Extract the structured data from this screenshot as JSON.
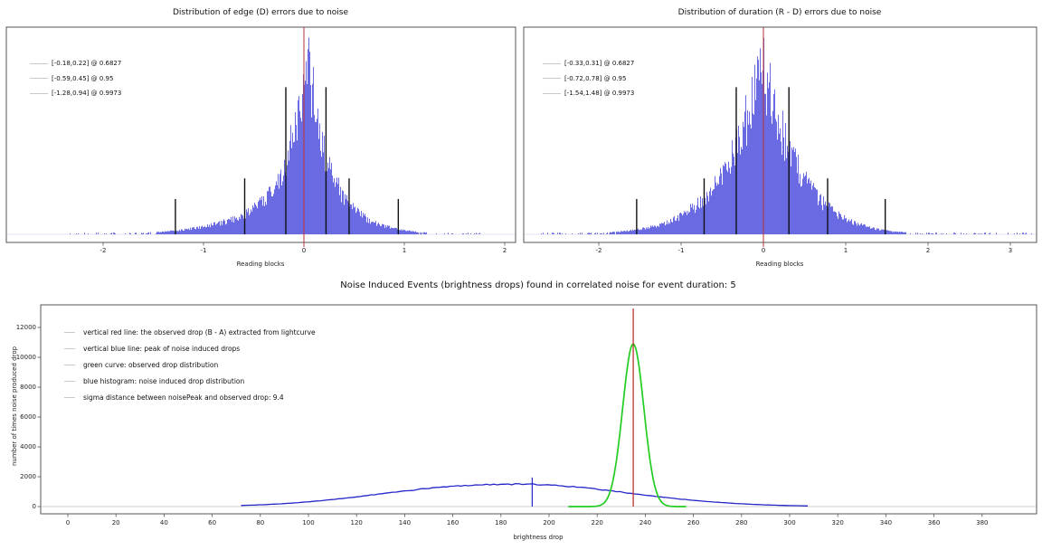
{
  "figure": {
    "background": "#ffffff"
  },
  "chart_data": [
    {
      "type": "bar",
      "id": "edge_errors",
      "title": "Distribution of edge (D) errors due to noise",
      "xlabel": "Reading blocks",
      "xlim": [
        -2.96,
        2.11
      ],
      "xticks": [
        -2,
        -1,
        0,
        1,
        2
      ],
      "grid": false,
      "legend_position": "upper left",
      "legend_entries": [
        "[-0.18,0.22] @ 0.6827",
        "[-0.59,0.45] @ 0.95",
        "[-1.28,0.94] @ 0.9973"
      ],
      "confidence_intervals": [
        {
          "low": -0.18,
          "high": 0.22,
          "coverage": 0.6827,
          "marker_height_frac": 0.71
        },
        {
          "low": -0.59,
          "high": 0.45,
          "coverage": 0.95,
          "marker_height_frac": 0.27
        },
        {
          "low": -1.28,
          "high": 0.94,
          "coverage": 0.9973,
          "marker_height_frac": 0.17
        }
      ],
      "red_vline_x": 0,
      "histogram": {
        "center": 0.03,
        "peak_frac": 0.88,
        "core_width": 0.18,
        "core_pow": 1.1,
        "core_weight": 0.78,
        "tail_width": 0.55,
        "tail_pow": 1.5,
        "tail_left_stretch": 1.35,
        "tail_right_stretch": 1.0,
        "range": [
          -2.4,
          1.8
        ],
        "seed": 12345
      },
      "colors": {
        "hist": "#6a6ae2",
        "red_line": "#bb3333",
        "interval_line": "#111111",
        "baseline": "#d8d8ee"
      }
    },
    {
      "type": "bar",
      "id": "duration_errors",
      "title": "Distribution of duration (R - D) errors due to noise",
      "xlabel": "Reading blocks",
      "xlim": [
        -2.91,
        3.31
      ],
      "xticks": [
        -2,
        -1,
        0,
        1,
        2,
        3
      ],
      "grid": false,
      "legend_position": "upper left",
      "legend_entries": [
        "[-0.33,0.31] @ 0.6827",
        "[-0.72,0.78] @ 0.95",
        "[-1.54,1.48] @ 0.9973"
      ],
      "confidence_intervals": [
        {
          "low": -0.33,
          "high": 0.31,
          "coverage": 0.6827,
          "marker_height_frac": 0.71
        },
        {
          "low": -0.72,
          "high": 0.78,
          "coverage": 0.95,
          "marker_height_frac": 0.27
        },
        {
          "low": -1.54,
          "high": 1.48,
          "coverage": 0.9973,
          "marker_height_frac": 0.17
        }
      ],
      "red_vline_x": 0,
      "histogram": {
        "center": -0.02,
        "peak_frac": 0.85,
        "core_width": 0.38,
        "core_pow": 1.1,
        "core_weight": 0.75,
        "tail_width": 0.75,
        "tail_pow": 1.5,
        "tail_left_stretch": 1.1,
        "tail_right_stretch": 1.0,
        "range": [
          -2.7,
          3.25
        ],
        "seed": 777
      },
      "colors": {
        "hist": "#6a6ae2",
        "red_line": "#bb3333",
        "interval_line": "#111111",
        "baseline": "#d8d8ee"
      }
    },
    {
      "type": "line",
      "id": "noise_induced_events",
      "title": "Noise Induced Events (brightness drops) found in correlated noise for event duration: 5",
      "xlabel": "brightness drop",
      "ylabel": "number of times noise produced drop",
      "xlim": [
        -11,
        403
      ],
      "ylim": [
        0,
        13500
      ],
      "xticks": [
        0,
        20,
        40,
        60,
        80,
        100,
        120,
        140,
        160,
        180,
        200,
        220,
        240,
        260,
        280,
        300,
        320,
        340,
        360,
        380
      ],
      "yticks": [
        0,
        2000,
        4000,
        6000,
        8000,
        10000,
        12000
      ],
      "grid": false,
      "legend_position": "upper left",
      "legend_entries": [
        "vertical red line: the observed drop (B - A) extracted from lightcurve",
        "vertical blue line: peak of noise induced drops",
        "green curve: observed drop distribution",
        "blue histogram: noise induced drop distribution",
        "sigma distance between noisePeak and observed drop: 9.4"
      ],
      "sigma_distance": 9.4,
      "red_vline": {
        "x": 235,
        "top": 13270
      },
      "blue_vline": {
        "x": 193,
        "top": 1950
      },
      "green_curve": {
        "center": 235,
        "sigma": 4.4,
        "peak": 10900,
        "domain": [
          208,
          257
        ]
      },
      "blue_curve": {
        "center": 188,
        "sigma_left": 55,
        "sigma_right": 45,
        "pow_left": 2.4,
        "pow_right": 2.0,
        "peak": 1500,
        "domain": [
          72,
          308
        ],
        "seed": 99
      },
      "colors": {
        "red_line": "#bb3333",
        "blue_line": "#2525c8",
        "green_curve": "#22cc22",
        "blue_curve": "#2525c8",
        "baseline": "#cfcfcf"
      }
    }
  ]
}
